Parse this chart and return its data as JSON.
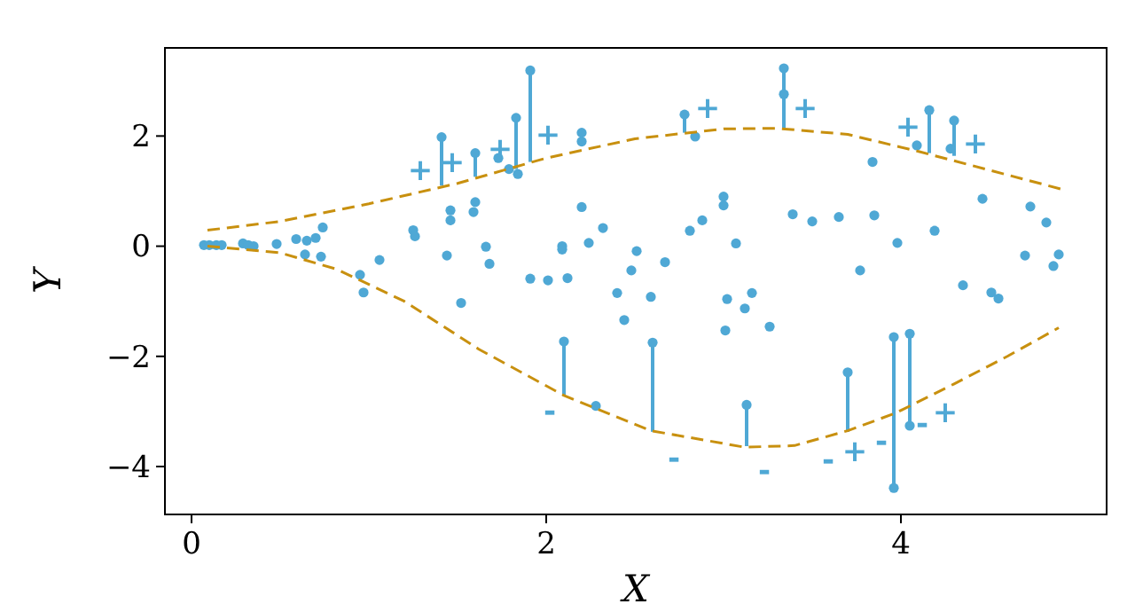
{
  "chart_data": {
    "type": "scatter",
    "xlabel": "X",
    "ylabel": "Y",
    "xlim": [
      -0.15,
      5.16
    ],
    "ylim": [
      -4.87,
      3.6
    ],
    "xticks": [
      0,
      2,
      4
    ],
    "yticks": [
      {
        "value": -4,
        "label": "−4"
      },
      {
        "value": -2,
        "label": "−2"
      },
      0,
      2
    ],
    "grid": false,
    "series": [
      {
        "type": "scatter",
        "color": "#4fa8d5",
        "marker": "circle",
        "x": [
          0.07,
          0.1,
          0.14,
          0.17,
          0.29,
          0.32,
          0.35,
          0.48,
          0.59,
          0.65,
          0.7,
          0.74,
          0.64,
          0.73,
          0.95,
          0.97,
          1.06,
          1.25,
          1.26,
          1.44,
          1.52,
          1.46,
          1.46,
          1.59,
          1.6,
          1.66,
          1.68,
          1.91,
          2.01,
          2.12,
          2.09,
          2.09,
          2.2,
          2.24,
          2.32,
          2.4,
          2.44,
          2.48,
          2.51,
          2.59,
          2.67,
          2.81,
          2.88,
          3.0,
          3.0,
          3.07,
          3.02,
          3.12,
          3.16,
          3.01,
          3.26,
          3.84,
          3.39,
          3.5,
          3.65,
          3.85,
          3.98,
          4.19,
          3.77,
          4.46,
          4.73,
          4.82,
          4.7,
          4.89,
          4.86,
          4.35,
          4.51,
          4.55,
          1.41,
          1.6,
          1.83,
          1.91,
          2.2,
          2.78,
          3.34,
          4.16,
          4.3,
          2.1,
          2.6,
          3.13,
          3.7,
          3.96,
          4.05,
          4.09,
          4.28,
          3.34,
          1.73,
          1.79,
          1.84,
          2.2,
          2.84,
          2.28,
          3.96,
          4.05
        ],
        "values": [
          0.02,
          0.02,
          0.02,
          0.02,
          0.05,
          0.02,
          0,
          0.04,
          0.13,
          0.1,
          0.15,
          0.34,
          -0.15,
          -0.19,
          -0.52,
          -0.84,
          -0.25,
          0.29,
          0.18,
          -0.17,
          -1.03,
          0.65,
          0.47,
          0.62,
          0.8,
          -0.01,
          -0.32,
          -0.59,
          -0.62,
          -0.58,
          0,
          -0.06,
          0.71,
          0.06,
          0.33,
          -0.85,
          -1.34,
          -0.44,
          -0.09,
          -0.92,
          -0.29,
          0.28,
          0.47,
          0.9,
          0.74,
          0.05,
          -0.96,
          -1.13,
          -0.85,
          -1.53,
          -1.46,
          1.53,
          0.58,
          0.45,
          0.53,
          0.56,
          0.06,
          0.28,
          -0.44,
          0.86,
          0.72,
          0.43,
          -0.17,
          -0.15,
          -0.36,
          -0.71,
          -0.84,
          -0.95,
          1.98,
          1.69,
          2.33,
          3.19,
          2.06,
          2.39,
          3.23,
          2.47,
          2.28,
          -1.73,
          -1.75,
          -2.88,
          -2.29,
          -1.65,
          -1.59,
          1.83,
          1.77,
          2.76,
          1.6,
          1.4,
          1.31,
          1.9,
          1.99,
          -2.9,
          -4.39,
          -3.26
        ],
        "errors": [
          null,
          null,
          null,
          null,
          null,
          null,
          null,
          null,
          null,
          null,
          null,
          null,
          null,
          null,
          null,
          null,
          null,
          null,
          null,
          null,
          null,
          null,
          null,
          null,
          null,
          null,
          null,
          null,
          null,
          null,
          null,
          null,
          null,
          null,
          null,
          null,
          null,
          null,
          null,
          null,
          null,
          null,
          null,
          null,
          null,
          null,
          null,
          null,
          null,
          null,
          null,
          null,
          null,
          null,
          null,
          null,
          null,
          null,
          null,
          null,
          null,
          null,
          null,
          null,
          null,
          null,
          null,
          null,
          [
            1.1,
            1.98
          ],
          [
            1.26,
            1.69
          ],
          [
            1.4,
            2.33
          ],
          [
            1.53,
            3.19
          ],
          [
            1.9,
            2.06
          ],
          [
            2.06,
            2.39
          ],
          [
            2.12,
            3.23
          ],
          [
            1.69,
            2.47
          ],
          [
            1.64,
            2.28
          ],
          [
            -2.72,
            -1.73
          ],
          [
            -3.37,
            -1.75
          ],
          [
            -3.63,
            -2.88
          ],
          [
            -3.37,
            -2.29
          ],
          [
            -4.39,
            -1.65
          ],
          [
            -3.26,
            -1.59
          ],
          null,
          null,
          null,
          null,
          null,
          null,
          null,
          null,
          null,
          null,
          null
        ]
      },
      {
        "type": "line",
        "color": "#c8900f",
        "line_style": "dashed",
        "marker": "none",
        "x": [
          0.09,
          0.5,
          1.0,
          1.5,
          2.0,
          2.5,
          3.0,
          3.3,
          3.7,
          4.1,
          4.5,
          4.9
        ],
        "values": [
          0.29,
          0.45,
          0.77,
          1.14,
          1.6,
          1.95,
          2.13,
          2.14,
          2.03,
          1.72,
          1.38,
          1.04
        ]
      },
      {
        "type": "line",
        "color": "#c8900f",
        "line_style": "dashed",
        "marker": "none",
        "x": [
          0.09,
          0.5,
          0.82,
          1.2,
          1.62,
          2.1,
          2.59,
          3.12,
          3.4,
          3.7,
          3.97,
          4.3,
          4.6,
          4.89
        ],
        "values": [
          0,
          -0.12,
          -0.42,
          -1.0,
          -1.87,
          -2.71,
          -3.35,
          -3.65,
          -3.62,
          -3.35,
          -3.03,
          -2.5,
          -2.0,
          -1.48
        ]
      }
    ],
    "annotations": [
      {
        "text": "+",
        "x": 1.29,
        "y": 0.98
      },
      {
        "text": "+",
        "x": 1.47,
        "y": 1.12
      },
      {
        "text": "+",
        "x": 1.74,
        "y": 1.36
      },
      {
        "text": "+",
        "x": 2.01,
        "y": 1.61
      },
      {
        "text": "+",
        "x": 2.91,
        "y": 2.1
      },
      {
        "text": "+",
        "x": 3.46,
        "y": 2.1
      },
      {
        "text": "+",
        "x": 4.04,
        "y": 1.77
      },
      {
        "text": "+",
        "x": 4.42,
        "y": 1.45
      },
      {
        "text": "-",
        "x": 2.02,
        "y": -2.57
      },
      {
        "text": "-",
        "x": 2.72,
        "y": -3.42
      },
      {
        "text": "-",
        "x": 3.23,
        "y": -3.64
      },
      {
        "text": "-",
        "x": 3.59,
        "y": -3.45
      },
      {
        "text": "+",
        "x": 3.74,
        "y": -3.3
      },
      {
        "text": "-",
        "x": 3.89,
        "y": -3.12
      },
      {
        "text": "-",
        "x": 4.12,
        "y": -2.79
      },
      {
        "text": "+",
        "x": 4.25,
        "y": -2.58
      }
    ]
  }
}
